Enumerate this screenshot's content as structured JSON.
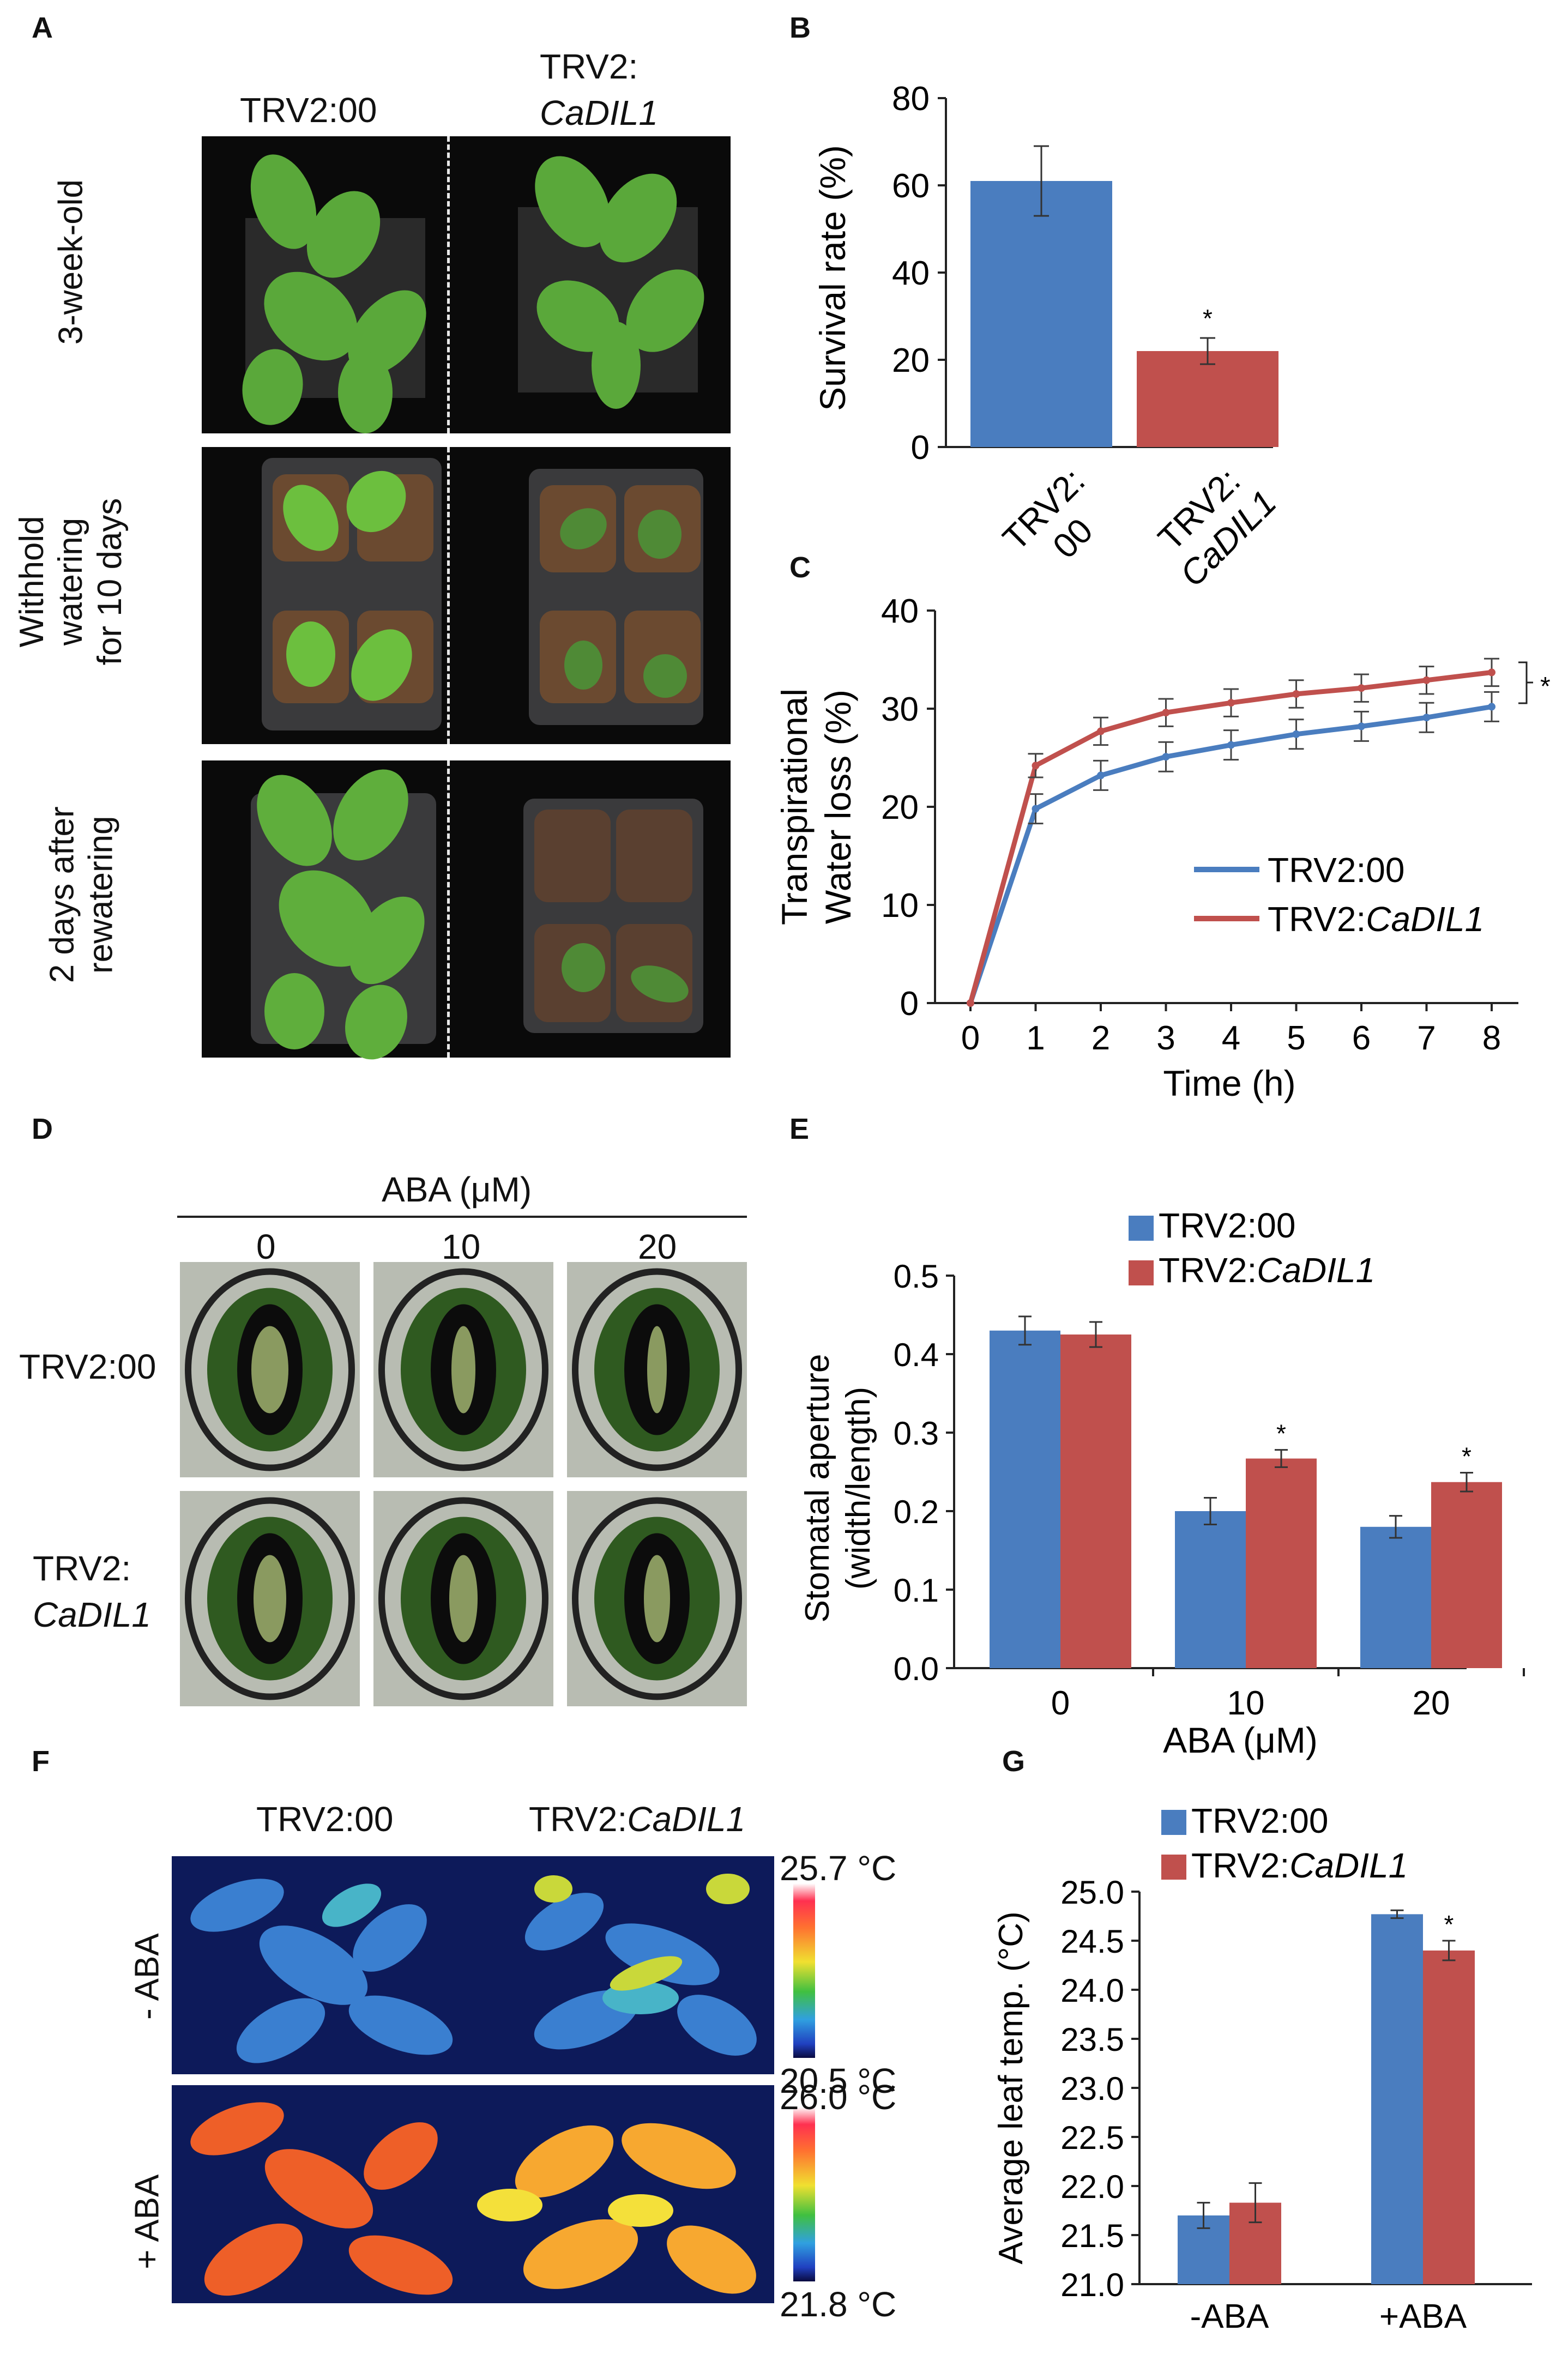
{
  "panels": {
    "A": "A",
    "B": "B",
    "C": "C",
    "D": "D",
    "E": "E",
    "F": "F",
    "G": "G"
  },
  "panelA": {
    "col1": "TRV2:00",
    "col2_prefix": "TRV2:",
    "col2_gene": "CaDIL1",
    "rows": [
      {
        "lines": [
          "3-week-old"
        ]
      },
      {
        "lines": [
          "Withhold",
          "watering",
          "for 10 days"
        ]
      },
      {
        "lines": [
          "2 days after",
          "rewatering"
        ]
      }
    ]
  },
  "panelD": {
    "header": "ABA (μM)",
    "cols": [
      "0",
      "10",
      "20"
    ],
    "row1": "TRV2:00",
    "row2_prefix": "TRV2:",
    "row2_gene": "CaDIL1"
  },
  "panelF": {
    "col1": "TRV2:00",
    "col2_prefix": "TRV2:",
    "col2_gene": "CaDIL1",
    "row1": "- ABA",
    "row2": "+ ABA",
    "scale1_max": "25.7 °C",
    "scale1_min": "20.5 °C",
    "scale2_max": "26.0 °C",
    "scale2_min": "21.8 °C"
  },
  "colors": {
    "trv00": "#4a7dbf",
    "cadil1": "#c0504d",
    "axis": "#222222"
  },
  "chart_data": [
    {
      "panel": "B",
      "type": "bar",
      "categories": [
        "TRV2:00",
        "TRV2:CaDIL1"
      ],
      "category_lines": [
        [
          "TRV2:",
          "00"
        ],
        [
          "TRV2:",
          "CaDIL1"
        ]
      ],
      "values": [
        61,
        22
      ],
      "errors": [
        8,
        3
      ],
      "significance": [
        "",
        "*"
      ],
      "ylabel": "Survival rate (%)",
      "ylim": [
        0,
        80
      ],
      "yticks": [
        0,
        20,
        40,
        60,
        80
      ]
    },
    {
      "panel": "C",
      "type": "line",
      "x": [
        0,
        1,
        2,
        3,
        4,
        5,
        6,
        7,
        8
      ],
      "series": [
        {
          "name": "TRV2:00",
          "values": [
            0,
            19.8,
            23.2,
            25.1,
            26.3,
            27.4,
            28.2,
            29.1,
            30.2
          ],
          "errors": [
            0,
            1.5,
            1.5,
            1.5,
            1.5,
            1.5,
            1.5,
            1.5,
            1.5
          ]
        },
        {
          "name": "TRV2:CaDIL1",
          "values": [
            0,
            24.2,
            27.7,
            29.6,
            30.6,
            31.5,
            32.1,
            32.9,
            33.7
          ],
          "errors": [
            0,
            1.2,
            1.4,
            1.4,
            1.4,
            1.4,
            1.4,
            1.4,
            1.4
          ]
        }
      ],
      "legend_name_prefix": "TRV2:",
      "legend_gene": "CaDIL1",
      "significance": "*",
      "xlabel": "Time (h)",
      "ylabel_lines": [
        "Transpirational",
        "Water loss (%)"
      ],
      "ylim": [
        0,
        40
      ],
      "yticks": [
        0,
        10,
        20,
        30,
        40
      ],
      "xticks": [
        0,
        1,
        2,
        3,
        4,
        5,
        6,
        7,
        8
      ]
    },
    {
      "panel": "E",
      "type": "bar",
      "categories": [
        "0",
        "10",
        "20"
      ],
      "series": [
        {
          "name": "TRV2:00",
          "values": [
            0.43,
            0.2,
            0.18
          ],
          "errors": [
            0.018,
            0.017,
            0.014
          ]
        },
        {
          "name": "TRV2:CaDIL1",
          "values": [
            0.425,
            0.267,
            0.237
          ],
          "errors": [
            0.016,
            0.011,
            0.012
          ]
        }
      ],
      "significance": [
        "",
        "*",
        "*"
      ],
      "xlabel": "ABA (μM)",
      "ylabel_lines": [
        "Stomatal aperture",
        "(width/length)"
      ],
      "ylim": [
        0,
        0.5
      ],
      "yticks": [
        "0.0",
        "0.1",
        "0.2",
        "0.3",
        "0.4",
        "0.5"
      ]
    },
    {
      "panel": "G",
      "type": "bar",
      "categories": [
        "-ABA",
        "+ABA"
      ],
      "series": [
        {
          "name": "TRV2:00",
          "values": [
            21.7,
            24.77
          ],
          "errors": [
            0.13,
            0.04
          ]
        },
        {
          "name": "TRV2:CaDIL1",
          "values": [
            21.83,
            24.4
          ],
          "errors": [
            0.2,
            0.1
          ]
        }
      ],
      "significance": [
        "",
        "*"
      ],
      "ylabel": "Average leaf temp. (°C)",
      "ylim": [
        21.0,
        25.0
      ],
      "yticks": [
        "21.0",
        "21.5",
        "22.0",
        "22.5",
        "23.0",
        "23.5",
        "24.0",
        "24.5",
        "25.0"
      ]
    }
  ]
}
